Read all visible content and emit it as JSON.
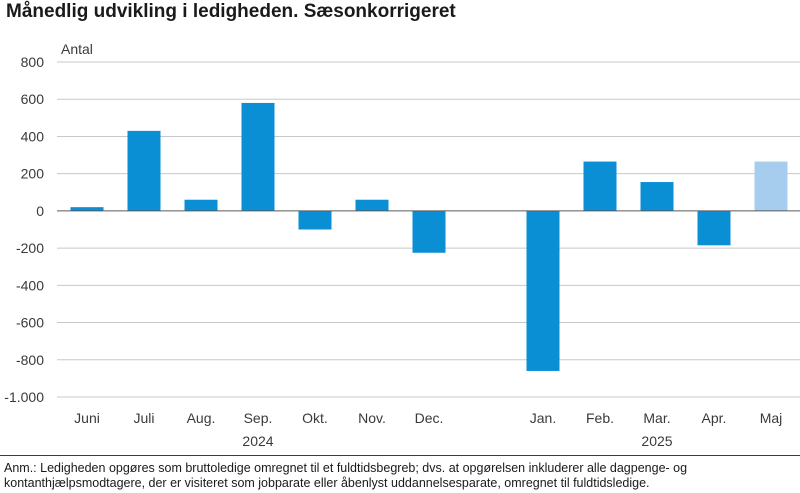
{
  "title": "Månedlig udvikling i ledigheden. Sæsonkorrigeret",
  "note": "Anm.: Ledigheden opgøres som bruttoledige omregnet til et fuldtidsbegreb; dvs. at opgørelsen inkluderer alle dagpenge- og kontanthjælpsmodtagere, der er visiteret som jobparate eller åbenlyst uddannelsesparate, omregnet til fuldtidsledige.",
  "colors": {
    "bar": "#0a8fd4",
    "bar_highlight": "#a6cdee",
    "grid": "#c8c8c8",
    "axis": "#5a5a5a"
  },
  "chart_data": {
    "type": "bar",
    "ylabel": "Antal",
    "ylim": [
      -1000,
      800
    ],
    "yticks": [
      800,
      600,
      400,
      200,
      0,
      -200,
      -400,
      -600,
      -800,
      -1000
    ],
    "ytick_labels": [
      "800",
      "600",
      "400",
      "200",
      "0",
      "-200",
      "-400",
      "-600",
      "-800",
      "-1.000"
    ],
    "grid": true,
    "categories": [
      "Juni",
      "Juli",
      "Aug.",
      "Sep.",
      "Okt.",
      "Nov.",
      "Dec.",
      "Jan.",
      "Feb.",
      "Mar.",
      "Apr.",
      "Maj"
    ],
    "values": [
      20,
      430,
      60,
      580,
      -100,
      60,
      -225,
      -860,
      265,
      155,
      -185,
      265
    ],
    "highlight": [
      false,
      false,
      false,
      false,
      false,
      false,
      false,
      false,
      false,
      false,
      false,
      true
    ],
    "years": [
      {
        "label": "2024",
        "from": 0,
        "to": 6
      },
      {
        "label": "2025",
        "from": 7,
        "to": 11
      }
    ]
  }
}
